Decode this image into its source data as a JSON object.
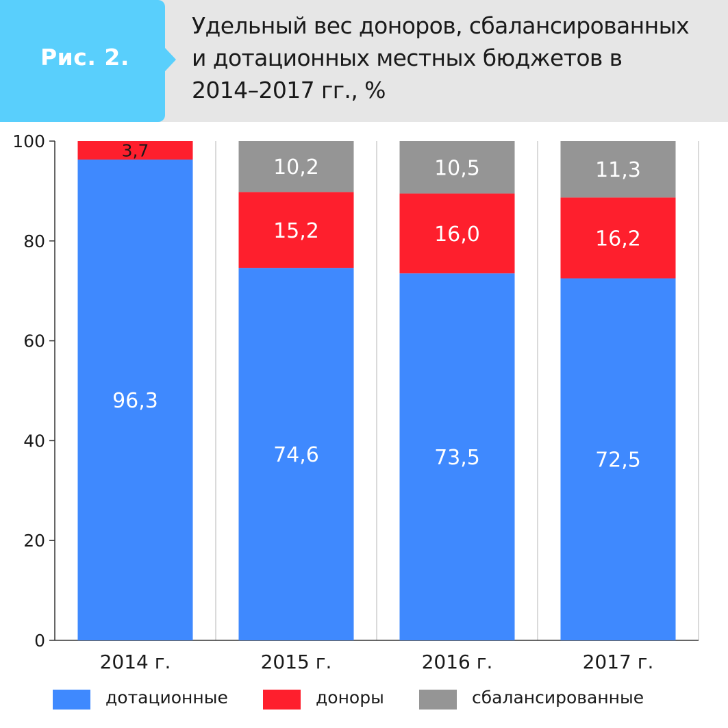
{
  "figure": {
    "badge": "Рис. 2.",
    "title": "Удельный вес доноров, сбалансированных\nи дотационных местных бюджетов в\n2014–2017 гг., %"
  },
  "colors": {
    "header_bg": "#e6e6e6",
    "badge_bg": "#59cffc",
    "dotation": "#3f89fe",
    "donors": "#fe1f2d",
    "balanced": "#959595"
  },
  "chart_data": {
    "type": "bar",
    "stacked": true,
    "categories": [
      "2014 г.",
      "2015 г.",
      "2016 г.",
      "2017 г."
    ],
    "series": [
      {
        "name": "дотационные",
        "color": "#3f89fe",
        "values": [
          96.3,
          74.6,
          73.5,
          72.5
        ],
        "labels": [
          "96,3",
          "74,6",
          "73,5",
          "72,5"
        ]
      },
      {
        "name": "доноры",
        "color": "#fe1f2d",
        "values": [
          3.7,
          15.2,
          16.0,
          16.2
        ],
        "labels": [
          "3,7",
          "15,2",
          "16,0",
          "16,2"
        ]
      },
      {
        "name": "сбалансированные",
        "color": "#959595",
        "values": [
          0,
          10.2,
          10.5,
          11.3
        ],
        "labels": [
          "",
          "10,2",
          "10,5",
          "11,3"
        ]
      }
    ],
    "ylim": [
      0,
      100
    ],
    "yticks": [
      0,
      20,
      40,
      60,
      80,
      100
    ],
    "grid": "vertical",
    "legend": "bottom"
  }
}
